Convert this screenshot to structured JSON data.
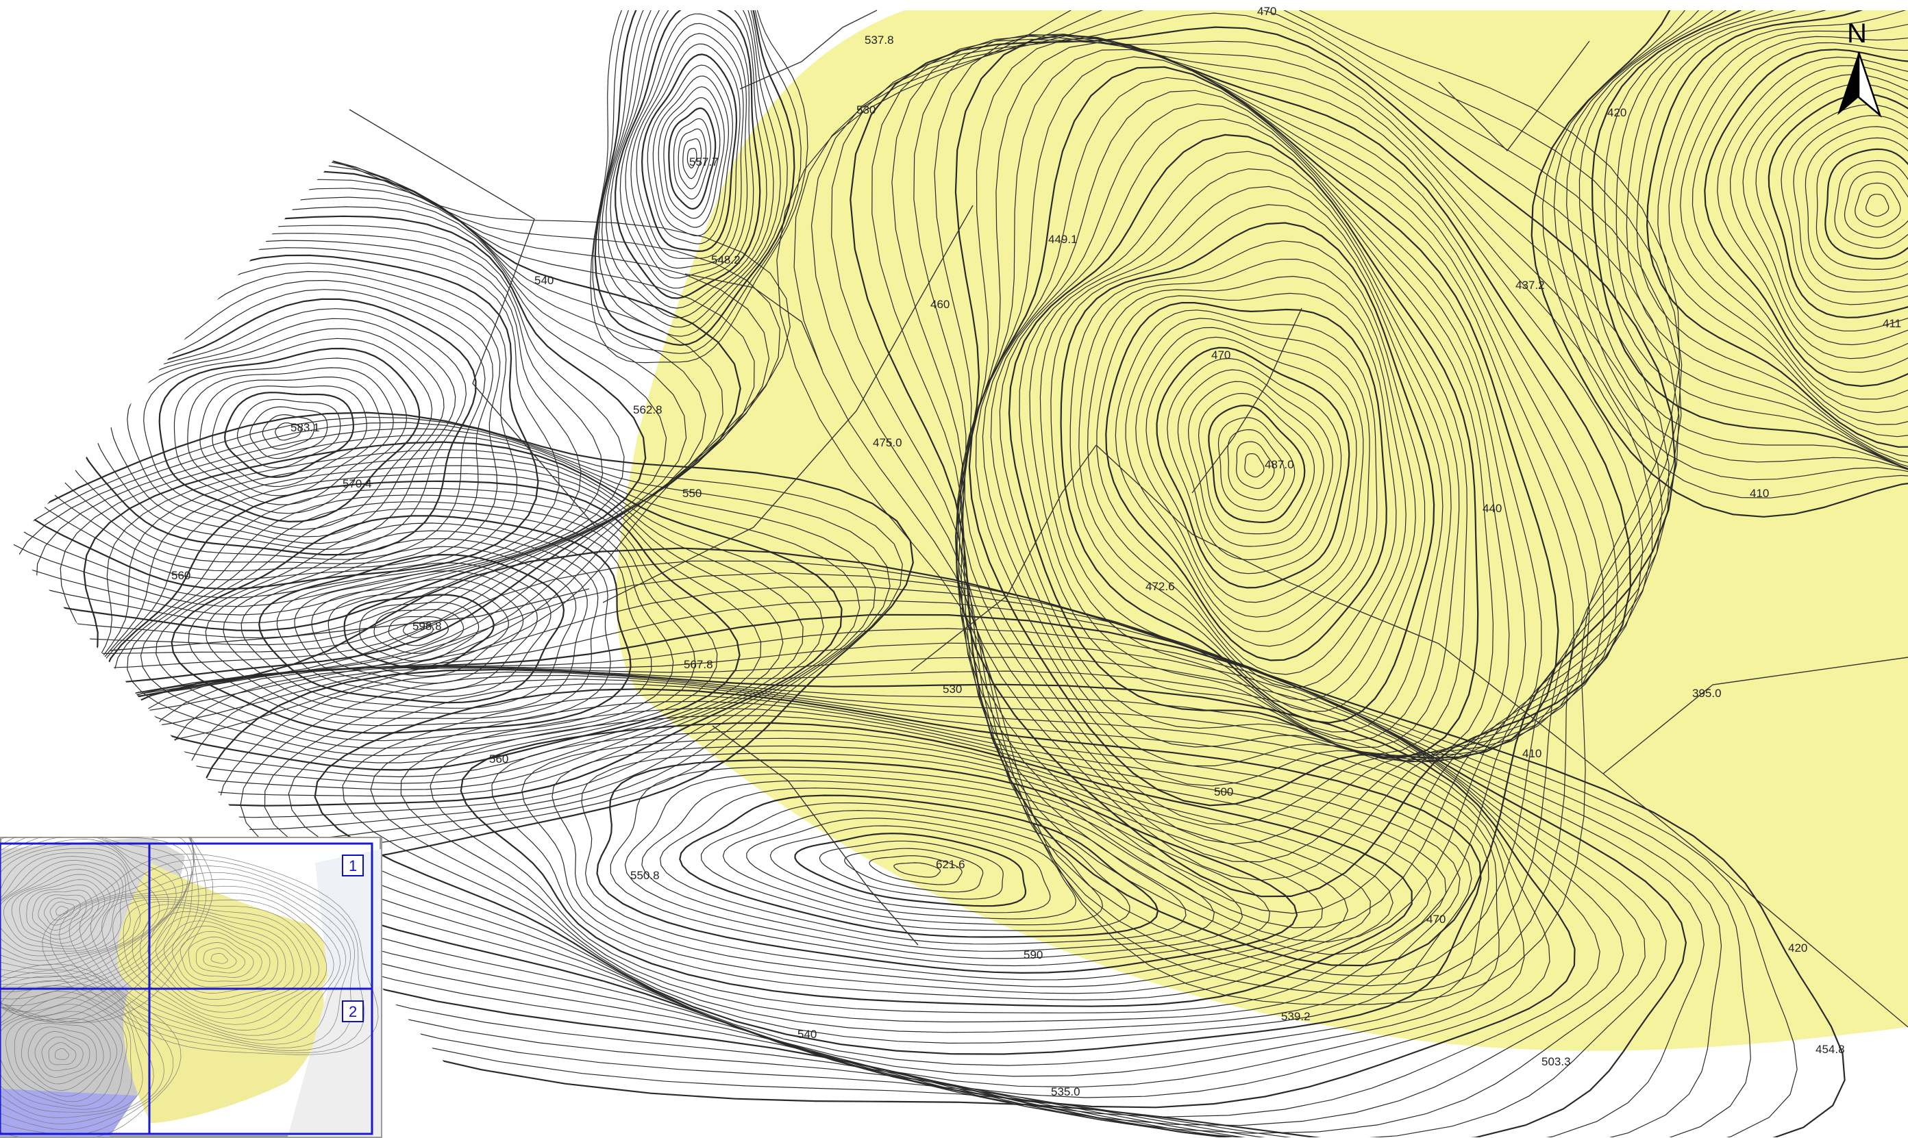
{
  "map": {
    "north_label": "N",
    "highlight_color": "#f6f39e",
    "contour_color": "#2a2a2a",
    "elevation_labels": [
      {
        "id": "e-470-top",
        "text": "470"
      },
      {
        "id": "e-537-8",
        "text": "537.8"
      },
      {
        "id": "e-530-a",
        "text": "530"
      },
      {
        "id": "e-420-a",
        "text": "420"
      },
      {
        "id": "e-557-7",
        "text": "557.7"
      },
      {
        "id": "e-548-2",
        "text": "548.2"
      },
      {
        "id": "e-449-1",
        "text": "449.1"
      },
      {
        "id": "e-540-a",
        "text": "540"
      },
      {
        "id": "e-437-2",
        "text": "437.2"
      },
      {
        "id": "e-460",
        "text": "460"
      },
      {
        "id": "e-411",
        "text": "411"
      },
      {
        "id": "e-470-b",
        "text": "470"
      },
      {
        "id": "e-562-8",
        "text": "562.8"
      },
      {
        "id": "e-583-1",
        "text": "583.1"
      },
      {
        "id": "e-475-0",
        "text": "475.0"
      },
      {
        "id": "e-487-0",
        "text": "487.0"
      },
      {
        "id": "e-570-4",
        "text": "570.4"
      },
      {
        "id": "e-550-a",
        "text": "550"
      },
      {
        "id": "e-440",
        "text": "440"
      },
      {
        "id": "e-410-a",
        "text": "410"
      },
      {
        "id": "e-560-a",
        "text": "560"
      },
      {
        "id": "e-472-6",
        "text": "472.6"
      },
      {
        "id": "e-598-8",
        "text": "598.8"
      },
      {
        "id": "e-567-8",
        "text": "567.8"
      },
      {
        "id": "e-530-b",
        "text": "530"
      },
      {
        "id": "e-395-0",
        "text": "395.0"
      },
      {
        "id": "e-560-b",
        "text": "560"
      },
      {
        "id": "e-410-b",
        "text": "410"
      },
      {
        "id": "e-500",
        "text": "500"
      },
      {
        "id": "e-550-8",
        "text": "550.8"
      },
      {
        "id": "e-621-6",
        "text": "621.6"
      },
      {
        "id": "e-470-c",
        "text": "470"
      },
      {
        "id": "e-420-b",
        "text": "420"
      },
      {
        "id": "e-590",
        "text": "590"
      },
      {
        "id": "e-539-2",
        "text": "539.2"
      },
      {
        "id": "e-540-b",
        "text": "540"
      },
      {
        "id": "e-503-3",
        "text": "503.3"
      },
      {
        "id": "e-454-8",
        "text": "454.8"
      },
      {
        "id": "e-535-0",
        "text": "535.0"
      }
    ]
  },
  "inset": {
    "tiles": [
      {
        "number": "1"
      },
      {
        "number": "2"
      }
    ],
    "grid_color": "#1a1ad0"
  }
}
